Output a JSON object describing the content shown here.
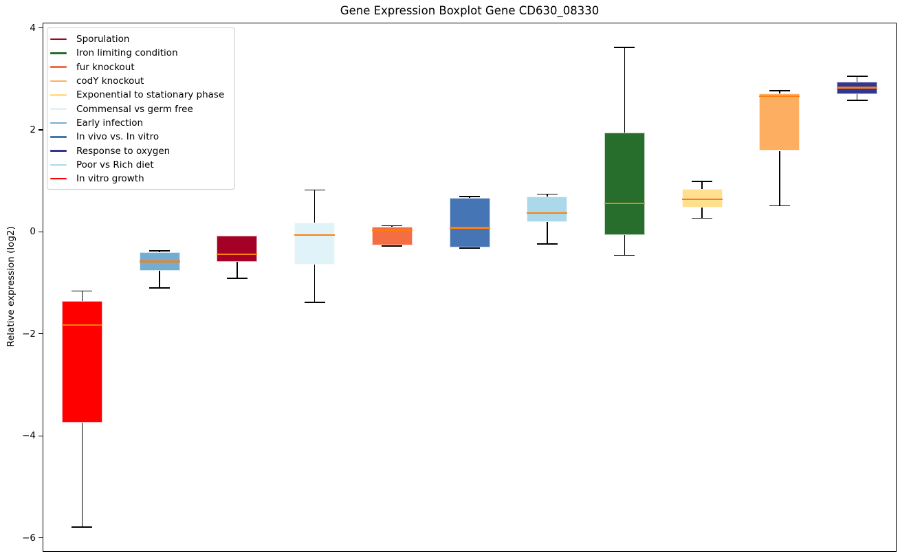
{
  "chart_data": {
    "type": "boxplot",
    "title": "Gene Expression Boxplot Gene CD630_08330",
    "xlabel": "",
    "ylabel": "Relative expression (log2)",
    "ylim": [
      -6.26,
      4.09
    ],
    "grid": false,
    "legend_position": "upper left",
    "median_color": "#ff7f0e",
    "whisker_color": "#000000",
    "yticks": [
      {
        "label": "4",
        "value": 4
      },
      {
        "label": "2",
        "value": 2
      },
      {
        "label": "0",
        "value": 0
      },
      {
        "label": "−2",
        "value": -2
      },
      {
        "label": "−4",
        "value": -4
      },
      {
        "label": "−6",
        "value": -6
      }
    ],
    "legend": [
      {
        "label": "Sporulation",
        "color": "#a50026"
      },
      {
        "label": "Iron limiting condition",
        "color": "#276d2b"
      },
      {
        "label": "fur knockout",
        "color": "#f46d43"
      },
      {
        "label": "codY knockout",
        "color": "#fdae61"
      },
      {
        "label": "Exponential to stationary phase",
        "color": "#fee090"
      },
      {
        "label": "Commensal vs germ free",
        "color": "#e0f3f8"
      },
      {
        "label": "Early infection",
        "color": "#74add1"
      },
      {
        "label": "In vivo vs. In vitro",
        "color": "#4575b4"
      },
      {
        "label": "Response to oxygen",
        "color": "#313695"
      },
      {
        "label": "Poor vs Rich diet",
        "color": "#abd9e9"
      },
      {
        "label": "In vitro growth",
        "color": "#ff0000"
      }
    ],
    "boxes": [
      {
        "condition": "In vitro growth",
        "color": "#ff0000",
        "whisker_lo": -5.79,
        "q1": -3.74,
        "median": -1.83,
        "q3": -1.35,
        "whisker_hi": -1.16
      },
      {
        "condition": "Early infection",
        "color": "#74add1",
        "whisker_lo": -1.1,
        "q1": -0.76,
        "median": -0.58,
        "q3": -0.4,
        "whisker_hi": -0.37
      },
      {
        "condition": "Sporulation",
        "color": "#a50026",
        "whisker_lo": -0.91,
        "q1": -0.59,
        "median": -0.44,
        "q3": -0.08,
        "whisker_hi": -0.08
      },
      {
        "condition": "Commensal vs germ free",
        "color": "#e0f3f8",
        "whisker_lo": -1.38,
        "q1": -0.64,
        "median": -0.06,
        "q3": 0.18,
        "whisker_hi": 0.82
      },
      {
        "condition": "fur knockout",
        "color": "#f46d43",
        "whisker_lo": -0.28,
        "q1": -0.26,
        "median": 0.03,
        "q3": 0.1,
        "whisker_hi": 0.12
      },
      {
        "condition": "In vivo vs. In vitro",
        "color": "#4575b4",
        "whisker_lo": -0.32,
        "q1": -0.31,
        "median": 0.08,
        "q3": 0.67,
        "whisker_hi": 0.69
      },
      {
        "condition": "Poor vs Rich diet",
        "color": "#abd9e9",
        "whisker_lo": -0.24,
        "q1": 0.19,
        "median": 0.37,
        "q3": 0.69,
        "whisker_hi": 0.74
      },
      {
        "condition": "Iron limiting condition",
        "color": "#276d2b",
        "whisker_lo": -0.46,
        "q1": -0.06,
        "median": 0.56,
        "q3": 1.95,
        "whisker_hi": 3.62
      },
      {
        "condition": "Exponential to stationary phase",
        "color": "#fee090",
        "whisker_lo": 0.27,
        "q1": 0.48,
        "median": 0.64,
        "q3": 0.84,
        "whisker_hi": 0.99
      },
      {
        "condition": "codY knockout",
        "color": "#fdae61",
        "whisker_lo": 0.51,
        "q1": 1.59,
        "median": 2.66,
        "q3": 2.71,
        "whisker_hi": 2.77
      },
      {
        "condition": "Response to oxygen",
        "color": "#313695",
        "whisker_lo": 2.58,
        "q1": 2.7,
        "median": 2.83,
        "q3": 2.94,
        "whisker_hi": 3.05
      }
    ]
  }
}
